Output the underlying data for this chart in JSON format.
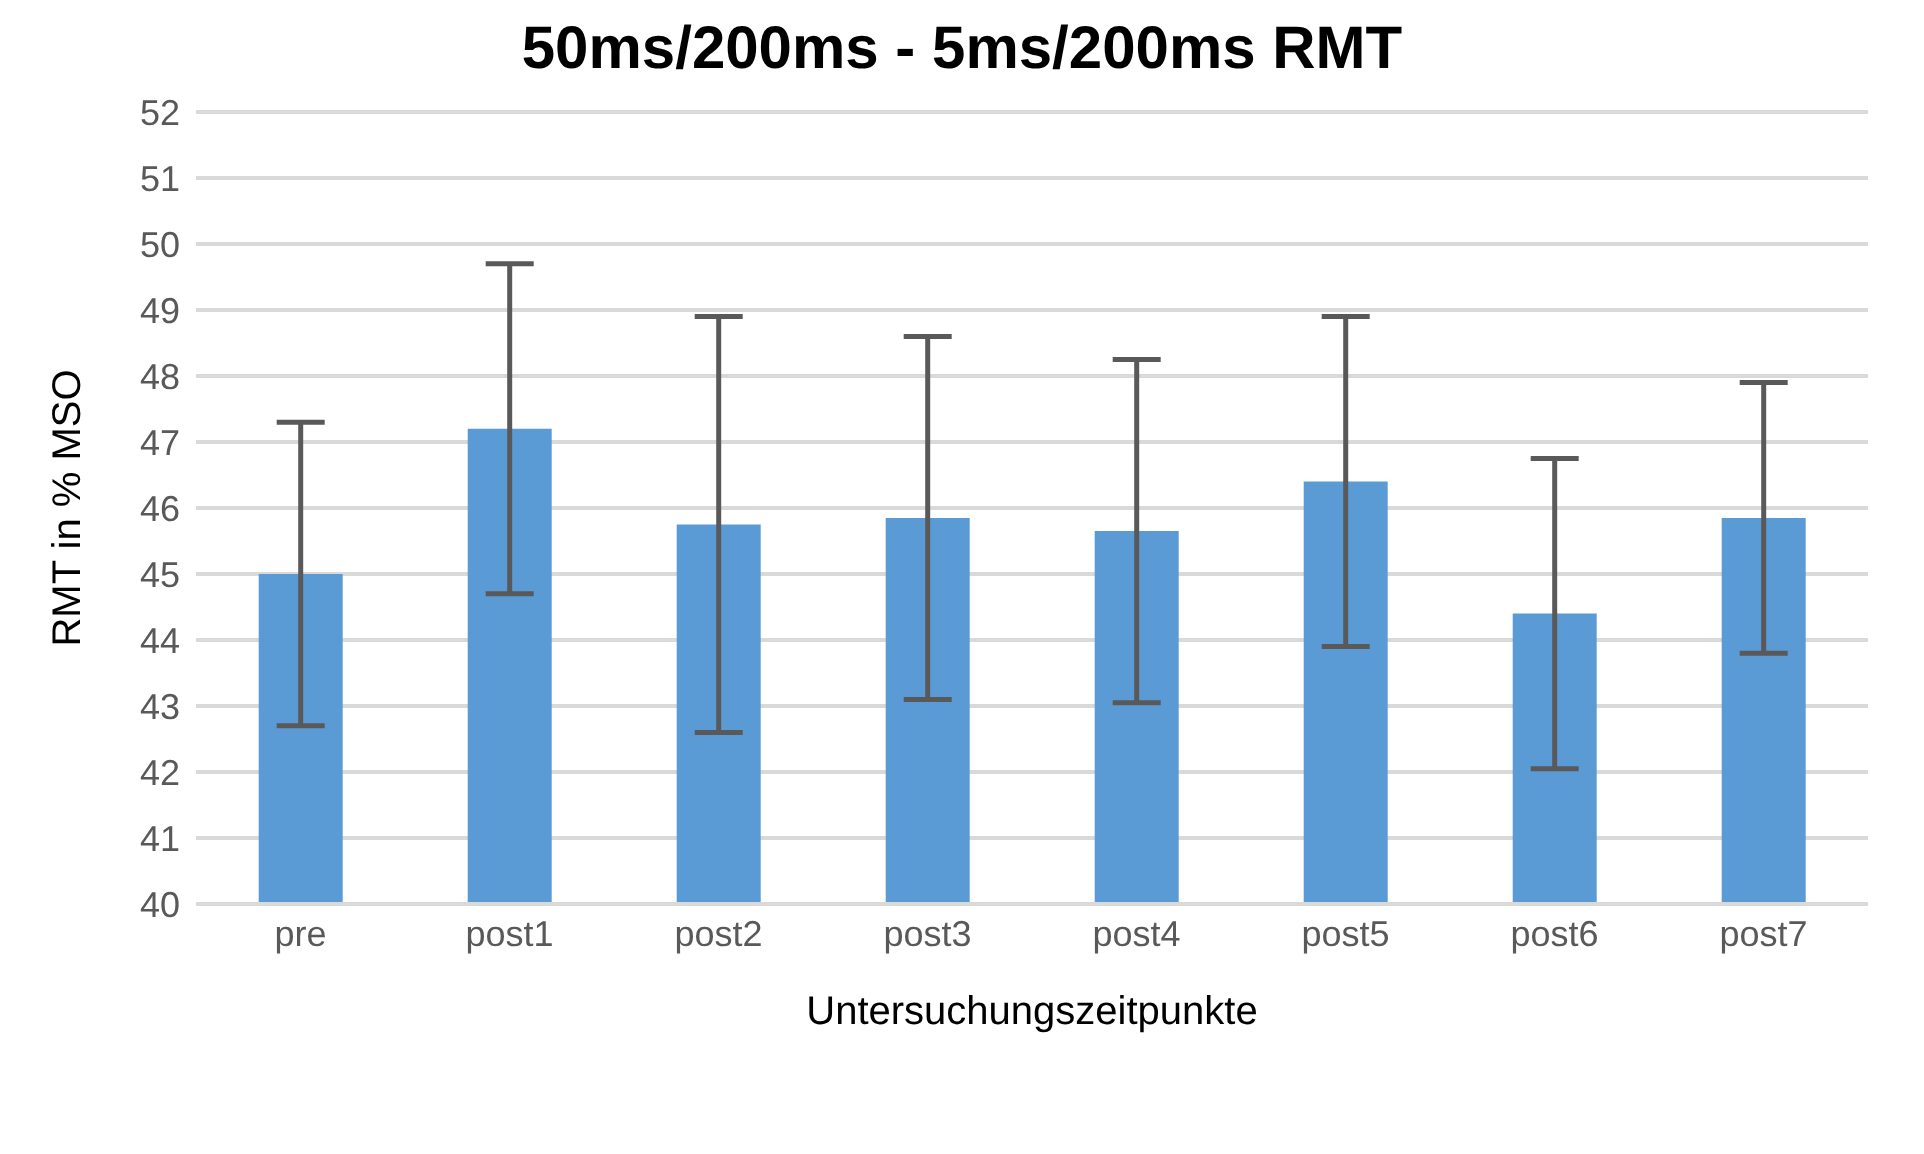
{
  "chart_data": {
    "type": "bar",
    "title": "50ms/200ms - 5ms/200ms RMT",
    "xlabel": "Untersuchungszeitpunkte",
    "ylabel": "RMT in % MSO",
    "categories": [
      "pre",
      "post1",
      "post2",
      "post3",
      "post4",
      "post5",
      "post6",
      "post7"
    ],
    "values": [
      45.0,
      47.2,
      45.75,
      45.85,
      45.65,
      46.4,
      44.4,
      45.85
    ],
    "errors": [
      2.3,
      2.5,
      3.15,
      2.75,
      2.6,
      2.5,
      2.35,
      2.05
    ],
    "color": "#5b9bd5",
    "ylim": [
      40,
      52
    ],
    "yticks": [
      40,
      41,
      42,
      43,
      44,
      45,
      46,
      47,
      48,
      49,
      50,
      51,
      52
    ],
    "grid": "y",
    "legend": false
  }
}
